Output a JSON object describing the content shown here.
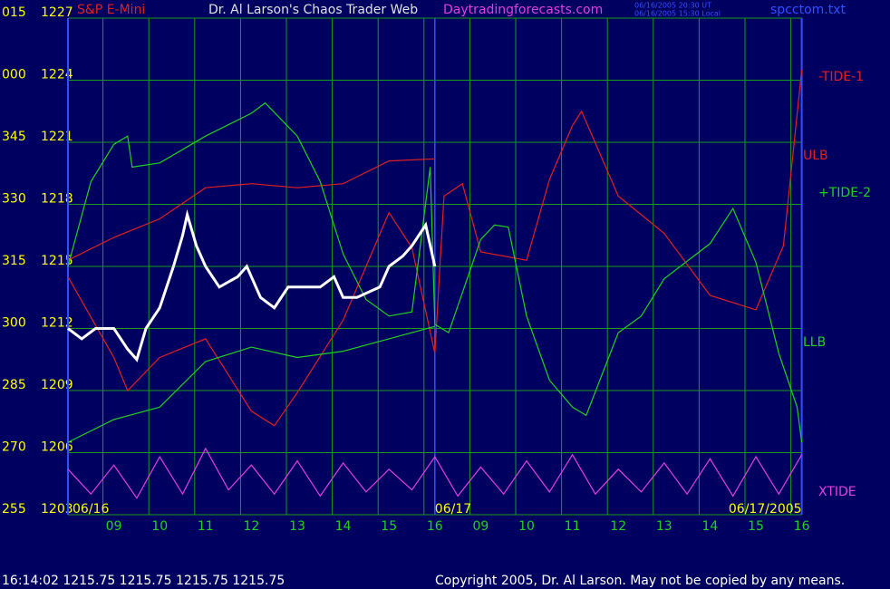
{
  "chart_data": {
    "type": "line",
    "title": "Dr. Al Larson's Chaos Trader Web",
    "instrument": "S&P E-Mini",
    "website": "Daytradingforecasts.com",
    "time_utc": "06/16/2005 20:30 UT",
    "time_local": "06/16/2005 15:30 Local",
    "file_name": "spcctom.txt",
    "status": "16:14:02  1215.75 1215.75 1215.75 1215.75",
    "copyright": "Copyright 2005, Dr. Al Larson. May not be copied by any means.",
    "xlim": [
      0,
      16
    ],
    "ylim": [
      1203,
      1227
    ],
    "yticks": [
      1203,
      1206,
      1209,
      1212,
      1215,
      1218,
      1221,
      1224,
      1227
    ],
    "angle_labels": [
      "255",
      "270",
      "285",
      "300",
      "315",
      "330",
      "345",
      "000",
      "015"
    ],
    "xticks": [
      {
        "value": 1,
        "label": "09"
      },
      {
        "value": 2,
        "label": "10"
      },
      {
        "value": 3,
        "label": "11"
      },
      {
        "value": 4,
        "label": "12"
      },
      {
        "value": 5,
        "label": "13"
      },
      {
        "value": 6,
        "label": "14"
      },
      {
        "value": 7,
        "label": "15"
      },
      {
        "value": 8,
        "label": "16"
      },
      {
        "value": 9,
        "label": "09"
      },
      {
        "value": 10,
        "label": "10"
      },
      {
        "value": 11,
        "label": "11"
      },
      {
        "value": 12,
        "label": "12"
      },
      {
        "value": 13,
        "label": "13"
      },
      {
        "value": 14,
        "label": "14"
      },
      {
        "value": 15,
        "label": "15"
      },
      {
        "value": 16,
        "label": "16"
      }
    ],
    "date_labels": [
      {
        "value": 0,
        "label": "06/16"
      },
      {
        "value": 8,
        "label": "06/17"
      },
      {
        "value": 16,
        "label": "06/17/2005"
      }
    ],
    "grid": true,
    "series": [
      {
        "name": "-TIDE-1",
        "color": "#e02020",
        "x": [
          0,
          1,
          1.3,
          2,
          3,
          4,
          4.5,
          5,
          6,
          6.5,
          7,
          7.5,
          8,
          8.2,
          8.6,
          9,
          10,
          10.5,
          11,
          11.2,
          12,
          13,
          14,
          15,
          15.6,
          16
        ],
        "values": [
          1214.5,
          1210.6,
          1209,
          1210.6,
          1211.5,
          1208,
          1207.3,
          1208.9,
          1212.4,
          1215,
          1217.6,
          1215.9,
          1210.8,
          1218.4,
          1219,
          1215.7,
          1215.3,
          1219.2,
          1221.8,
          1222.5,
          1218.4,
          1216.6,
          1213.6,
          1212.9,
          1216,
          1224.5
        ]
      },
      {
        "name": "ULB",
        "color": "#e02020",
        "x": [
          0,
          1,
          2,
          3,
          4,
          5,
          6,
          7,
          8
        ],
        "values": [
          1215.3,
          1216.4,
          1217.3,
          1218.8,
          1219,
          1218.8,
          1219,
          1220.1,
          1220.2
        ]
      },
      {
        "name": "+TIDE-2",
        "color": "#20d020",
        "x": [
          0,
          0.5,
          1,
          1.3,
          1.4,
          2,
          3,
          4,
          4.3,
          5,
          5.5,
          6,
          6.5,
          7,
          7.5,
          7.9,
          8,
          8.3,
          9,
          9.3,
          9.6,
          10,
          10.5,
          11,
          11.3,
          12,
          12.5,
          13,
          14,
          14.5,
          15,
          15.5,
          15.9,
          16
        ],
        "values": [
          1215,
          1219.1,
          1220.9,
          1221.3,
          1219.8,
          1220,
          1221.3,
          1222.4,
          1222.9,
          1221.3,
          1219.1,
          1215.6,
          1213.4,
          1212.6,
          1212.8,
          1219.8,
          1212.2,
          1211.8,
          1216.3,
          1217,
          1216.9,
          1212.6,
          1209.5,
          1208.2,
          1207.8,
          1211.8,
          1212.6,
          1214.4,
          1216.1,
          1217.8,
          1215.2,
          1210.8,
          1208.2,
          1206.5
        ]
      },
      {
        "name": "LLB",
        "color": "#20d020",
        "x": [
          0,
          1,
          2,
          3,
          4,
          5,
          6,
          7,
          8
        ],
        "values": [
          1206.5,
          1207.6,
          1208.2,
          1210.4,
          1211.1,
          1210.6,
          1210.9,
          1211.5,
          1212.1
        ]
      },
      {
        "name": "XTIDE",
        "color": "#e040e0",
        "x": [
          0,
          0.5,
          1,
          1.5,
          2,
          2.5,
          3,
          3.5,
          4,
          4.5,
          5,
          5.5,
          6,
          6.5,
          7,
          7.5,
          8,
          8.5,
          9,
          9.5,
          10,
          10.5,
          11,
          11.5,
          12,
          12.5,
          13,
          13.5,
          14,
          14.5,
          15,
          15.5,
          16
        ],
        "values": [
          1205.2,
          1204,
          1205.4,
          1203.8,
          1205.8,
          1204,
          1206.2,
          1204.2,
          1205.4,
          1204,
          1205.6,
          1203.9,
          1205.5,
          1204.1,
          1205.2,
          1204.2,
          1205.8,
          1203.9,
          1205.3,
          1204,
          1205.6,
          1204.1,
          1205.9,
          1204,
          1205.2,
          1204.1,
          1205.5,
          1204,
          1205.7,
          1203.9,
          1205.8,
          1204,
          1205.9
        ]
      },
      {
        "color": "#ffffff",
        "x": [
          0,
          0.3,
          0.6,
          1,
          1.3,
          1.5,
          1.7,
          2,
          2.3,
          2.5,
          2.6,
          2.8,
          3,
          3.3,
          3.7,
          3.9,
          4.2,
          4.5,
          4.8,
          5,
          5.5,
          5.8,
          6,
          6.3,
          6.8,
          7,
          7.3,
          7.5,
          7.8,
          8
        ],
        "values": [
          1212,
          1211.5,
          1212,
          1212,
          1211,
          1210.5,
          1212,
          1213,
          1215,
          1216.5,
          1217.5,
          1216,
          1215,
          1214,
          1214.5,
          1215,
          1213.5,
          1213,
          1214,
          1214,
          1214,
          1214.5,
          1213.5,
          1213.5,
          1214,
          1215,
          1215.5,
          1216,
          1217,
          1215
        ]
      }
    ]
  }
}
